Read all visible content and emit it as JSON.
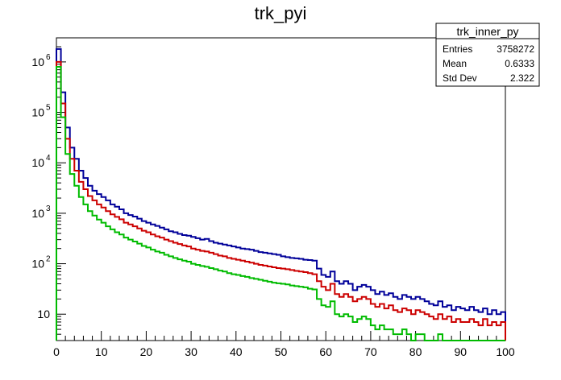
{
  "chart_data": {
    "type": "line",
    "title": "trk_pyi",
    "xlabel": "",
    "ylabel": "",
    "xlim": [
      0,
      100
    ],
    "ylim": [
      3,
      3000000
    ],
    "y_scale": "log",
    "grid": false,
    "x_ticks": [
      "0",
      "10",
      "20",
      "30",
      "40",
      "50",
      "60",
      "70",
      "80",
      "90",
      "100"
    ],
    "y_ticks": [
      {
        "base": "10",
        "exp": "6",
        "value": 1000000
      },
      {
        "base": "10",
        "exp": "5",
        "value": 100000
      },
      {
        "base": "10",
        "exp": "4",
        "value": 10000
      },
      {
        "base": "10",
        "exp": "3",
        "value": 1000
      },
      {
        "base": "10",
        "exp": "2",
        "value": 100
      },
      {
        "base": "10",
        "exp": "",
        "value": 10
      }
    ],
    "bin_edges_start": 0,
    "bin_width": 1,
    "series": [
      {
        "color": "#000099",
        "values": [
          1800000,
          250000,
          50000,
          20000,
          12000,
          7000,
          5000,
          3500,
          2800,
          2400,
          2100,
          1800,
          1500,
          1350,
          1200,
          1000,
          920,
          860,
          780,
          700,
          650,
          600,
          560,
          520,
          480,
          440,
          420,
          390,
          370,
          360,
          340,
          320,
          300,
          310,
          280,
          260,
          250,
          240,
          230,
          220,
          210,
          200,
          195,
          190,
          180,
          170,
          165,
          160,
          155,
          150,
          140,
          135,
          130,
          128,
          125,
          120,
          118,
          115,
          80,
          60,
          55,
          70,
          45,
          40,
          45,
          40,
          30,
          35,
          38,
          35,
          30,
          25,
          28,
          24,
          26,
          22,
          20,
          24,
          22,
          20,
          22,
          20,
          18,
          16,
          15,
          18,
          14,
          15,
          12,
          14,
          13,
          12,
          14,
          12,
          11,
          13,
          10,
          12,
          10,
          11
        ]
      },
      {
        "color": "#cc0000",
        "values": [
          1000000,
          150000,
          30000,
          12000,
          7000,
          4200,
          3000,
          2200,
          1800,
          1500,
          1300,
          1100,
          950,
          850,
          760,
          650,
          600,
          550,
          500,
          450,
          420,
          380,
          350,
          330,
          300,
          280,
          260,
          245,
          230,
          220,
          200,
          190,
          180,
          175,
          165,
          155,
          145,
          140,
          130,
          125,
          120,
          115,
          110,
          105,
          100,
          95,
          92,
          88,
          85,
          82,
          80,
          78,
          75,
          72,
          70,
          68,
          65,
          62,
          45,
          35,
          30,
          40,
          25,
          22,
          25,
          22,
          18,
          20,
          22,
          20,
          16,
          14,
          16,
          13,
          15,
          12,
          11,
          13,
          12,
          10,
          12,
          11,
          10,
          9,
          8,
          10,
          8,
          9,
          7,
          8,
          7,
          7,
          8,
          7,
          6,
          8,
          6,
          7,
          6,
          7
        ]
      },
      {
        "color": "#00bb00",
        "values": [
          800000,
          80000,
          15000,
          6000,
          3500,
          2100,
          1500,
          1100,
          900,
          750,
          650,
          550,
          480,
          420,
          380,
          330,
          300,
          275,
          250,
          225,
          210,
          190,
          175,
          165,
          150,
          140,
          130,
          122,
          115,
          110,
          100,
          95,
          90,
          87,
          82,
          78,
          73,
          70,
          65,
          62,
          60,
          57,
          55,
          52,
          50,
          48,
          46,
          44,
          42,
          41,
          40,
          39,
          37,
          36,
          35,
          34,
          32,
          31,
          20,
          15,
          14,
          18,
          10,
          9,
          10,
          9,
          7,
          8,
          9,
          8,
          6,
          5,
          6,
          5,
          5,
          4,
          4,
          5,
          4,
          3,
          4,
          4,
          3,
          3,
          3,
          4,
          3,
          3,
          3,
          3,
          3,
          3,
          3,
          3,
          3,
          3,
          3,
          3,
          3,
          3
        ]
      }
    ]
  },
  "stats_box": {
    "title": "trk_inner_py",
    "rows": [
      {
        "label": "Entries",
        "value": "3758272"
      },
      {
        "label": "Mean",
        "value": "0.6333"
      },
      {
        "label": "Std Dev",
        "value": "2.322"
      }
    ]
  }
}
